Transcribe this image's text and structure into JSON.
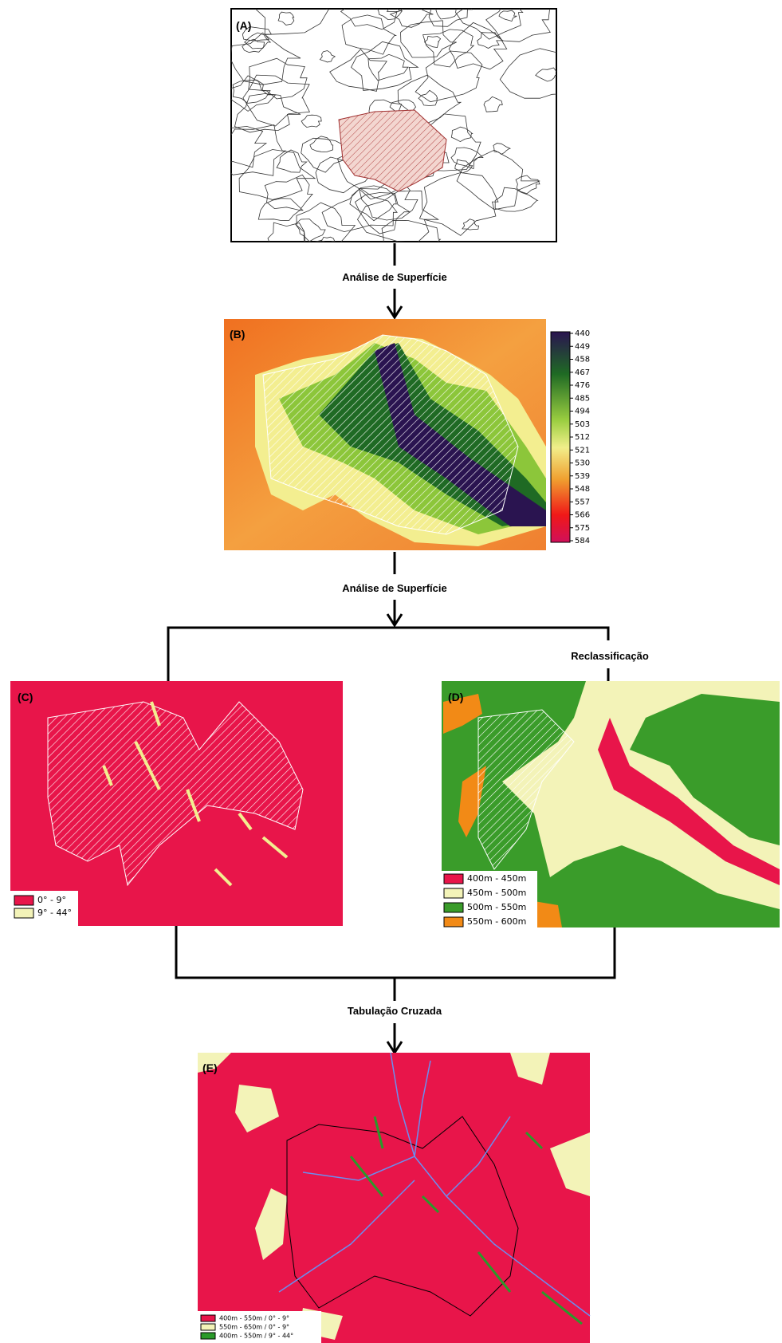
{
  "steps": [
    "Análise de Superfície",
    "Análise de Superfície",
    "Reclassificação",
    "Tabulação Cruzada"
  ],
  "panels": [
    {
      "label": "(A)"
    },
    {
      "label": "(B)",
      "colorbar": [
        440,
        449,
        458,
        467,
        476,
        485,
        494,
        503,
        512,
        521,
        530,
        539,
        548,
        557,
        566,
        575,
        584
      ]
    },
    {
      "label": "(C)",
      "legend": [
        "0° - 9°",
        "9° - 44°"
      ]
    },
    {
      "label": "(D)",
      "legend": [
        "400m - 450m",
        "450m - 500m",
        "500m - 550m",
        "550m - 600m"
      ]
    },
    {
      "label": "(E)",
      "legend": [
        "400m - 550m / 0° - 9°",
        "550m - 650m / 0° - 9°",
        "400m - 550m / 9° - 44°"
      ]
    }
  ]
}
